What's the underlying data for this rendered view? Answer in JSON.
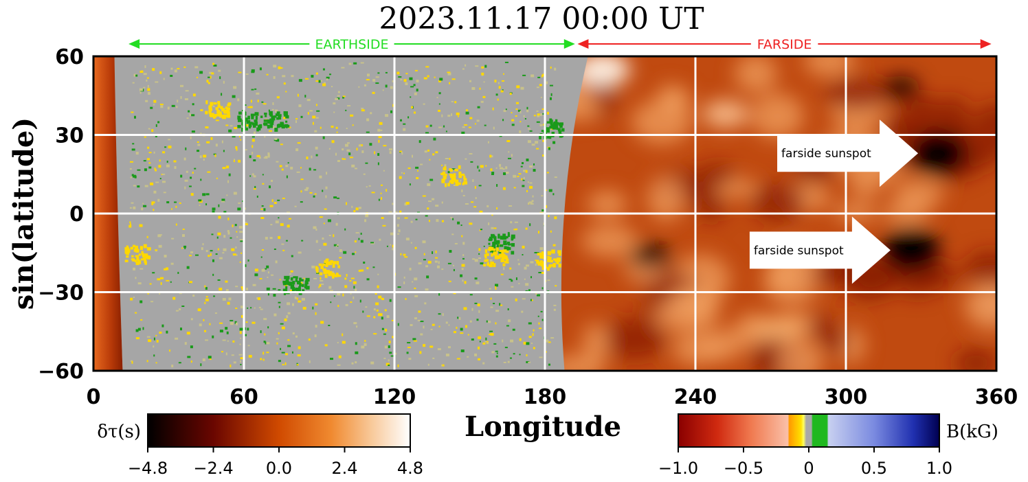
{
  "chart_data": {
    "type": "heatmap",
    "title": "2023.11.17  00:00 UT",
    "xlabel": "Longitude",
    "ylabel": "sin(latitude)",
    "xlim": [
      0,
      360
    ],
    "ylim": [
      -60,
      60
    ],
    "xticks": [
      "0",
      "60",
      "120",
      "180",
      "240",
      "300",
      "360"
    ],
    "yticks": [
      "60",
      "30",
      "0",
      "−30",
      "−60"
    ],
    "xtick_values": [
      0,
      60,
      120,
      180,
      240,
      300,
      360
    ],
    "ytick_values": [
      60,
      30,
      0,
      -30,
      -60
    ],
    "grid": true,
    "regions": [
      {
        "label": "EARTHSIDE",
        "from": 14,
        "to": 192,
        "color": "#22dd22"
      },
      {
        "label": "FARSIDE",
        "from": 193,
        "to": 358,
        "color": "#ee2222"
      }
    ],
    "earthside_lon_range": [
      10,
      190
    ],
    "annotations": [
      {
        "text": "farside sunspot",
        "lon": 337,
        "lat": 23
      },
      {
        "text": "farside sunspot",
        "lon": 326,
        "lat": -14
      }
    ],
    "colorbars": [
      {
        "label": "δτ(s)",
        "ticks": [
          "−4.8",
          "−2.4",
          "0.0",
          "2.4",
          "4.8"
        ],
        "tick_values": [
          -4.8,
          -2.4,
          0.0,
          2.4,
          4.8
        ],
        "range": [
          -4.8,
          4.8
        ]
      },
      {
        "label": "B(kG)",
        "ticks": [
          "−1.0",
          "−0.5",
          "0",
          "0.5",
          "1.0"
        ],
        "tick_values": [
          -1.0,
          -0.5,
          0.0,
          0.5,
          1.0
        ],
        "range": [
          -1.0,
          1.0
        ]
      }
    ]
  },
  "colors": {
    "farside_base": "#c04a10",
    "earthside_gray": "#a6a6a6",
    "grid": "#ffffff",
    "positive_field": "#ffd800",
    "negative_field": "#1a9a1a"
  }
}
